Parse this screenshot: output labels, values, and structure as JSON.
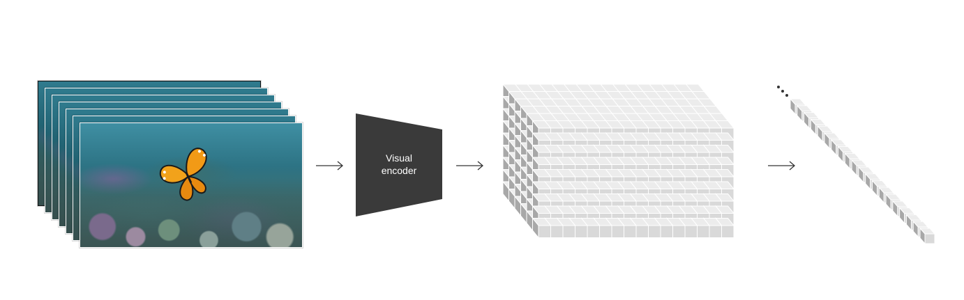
{
  "encoder": {
    "line1": "Visual",
    "line2": "encoder"
  },
  "colors": {
    "encoder_fill": "#3a3a3a",
    "cube_front": "#d9d9d9",
    "cube_top": "#ececec",
    "cube_side": "#a8a8a8",
    "arrow": "#333333"
  },
  "icons": {
    "frames": "video-frames-stack",
    "butterfly": "butterfly",
    "arrow": "right-arrow",
    "tokens": "token-cube-grid",
    "sequence": "token-sequence",
    "ellipsis": "ellipsis-dots"
  }
}
